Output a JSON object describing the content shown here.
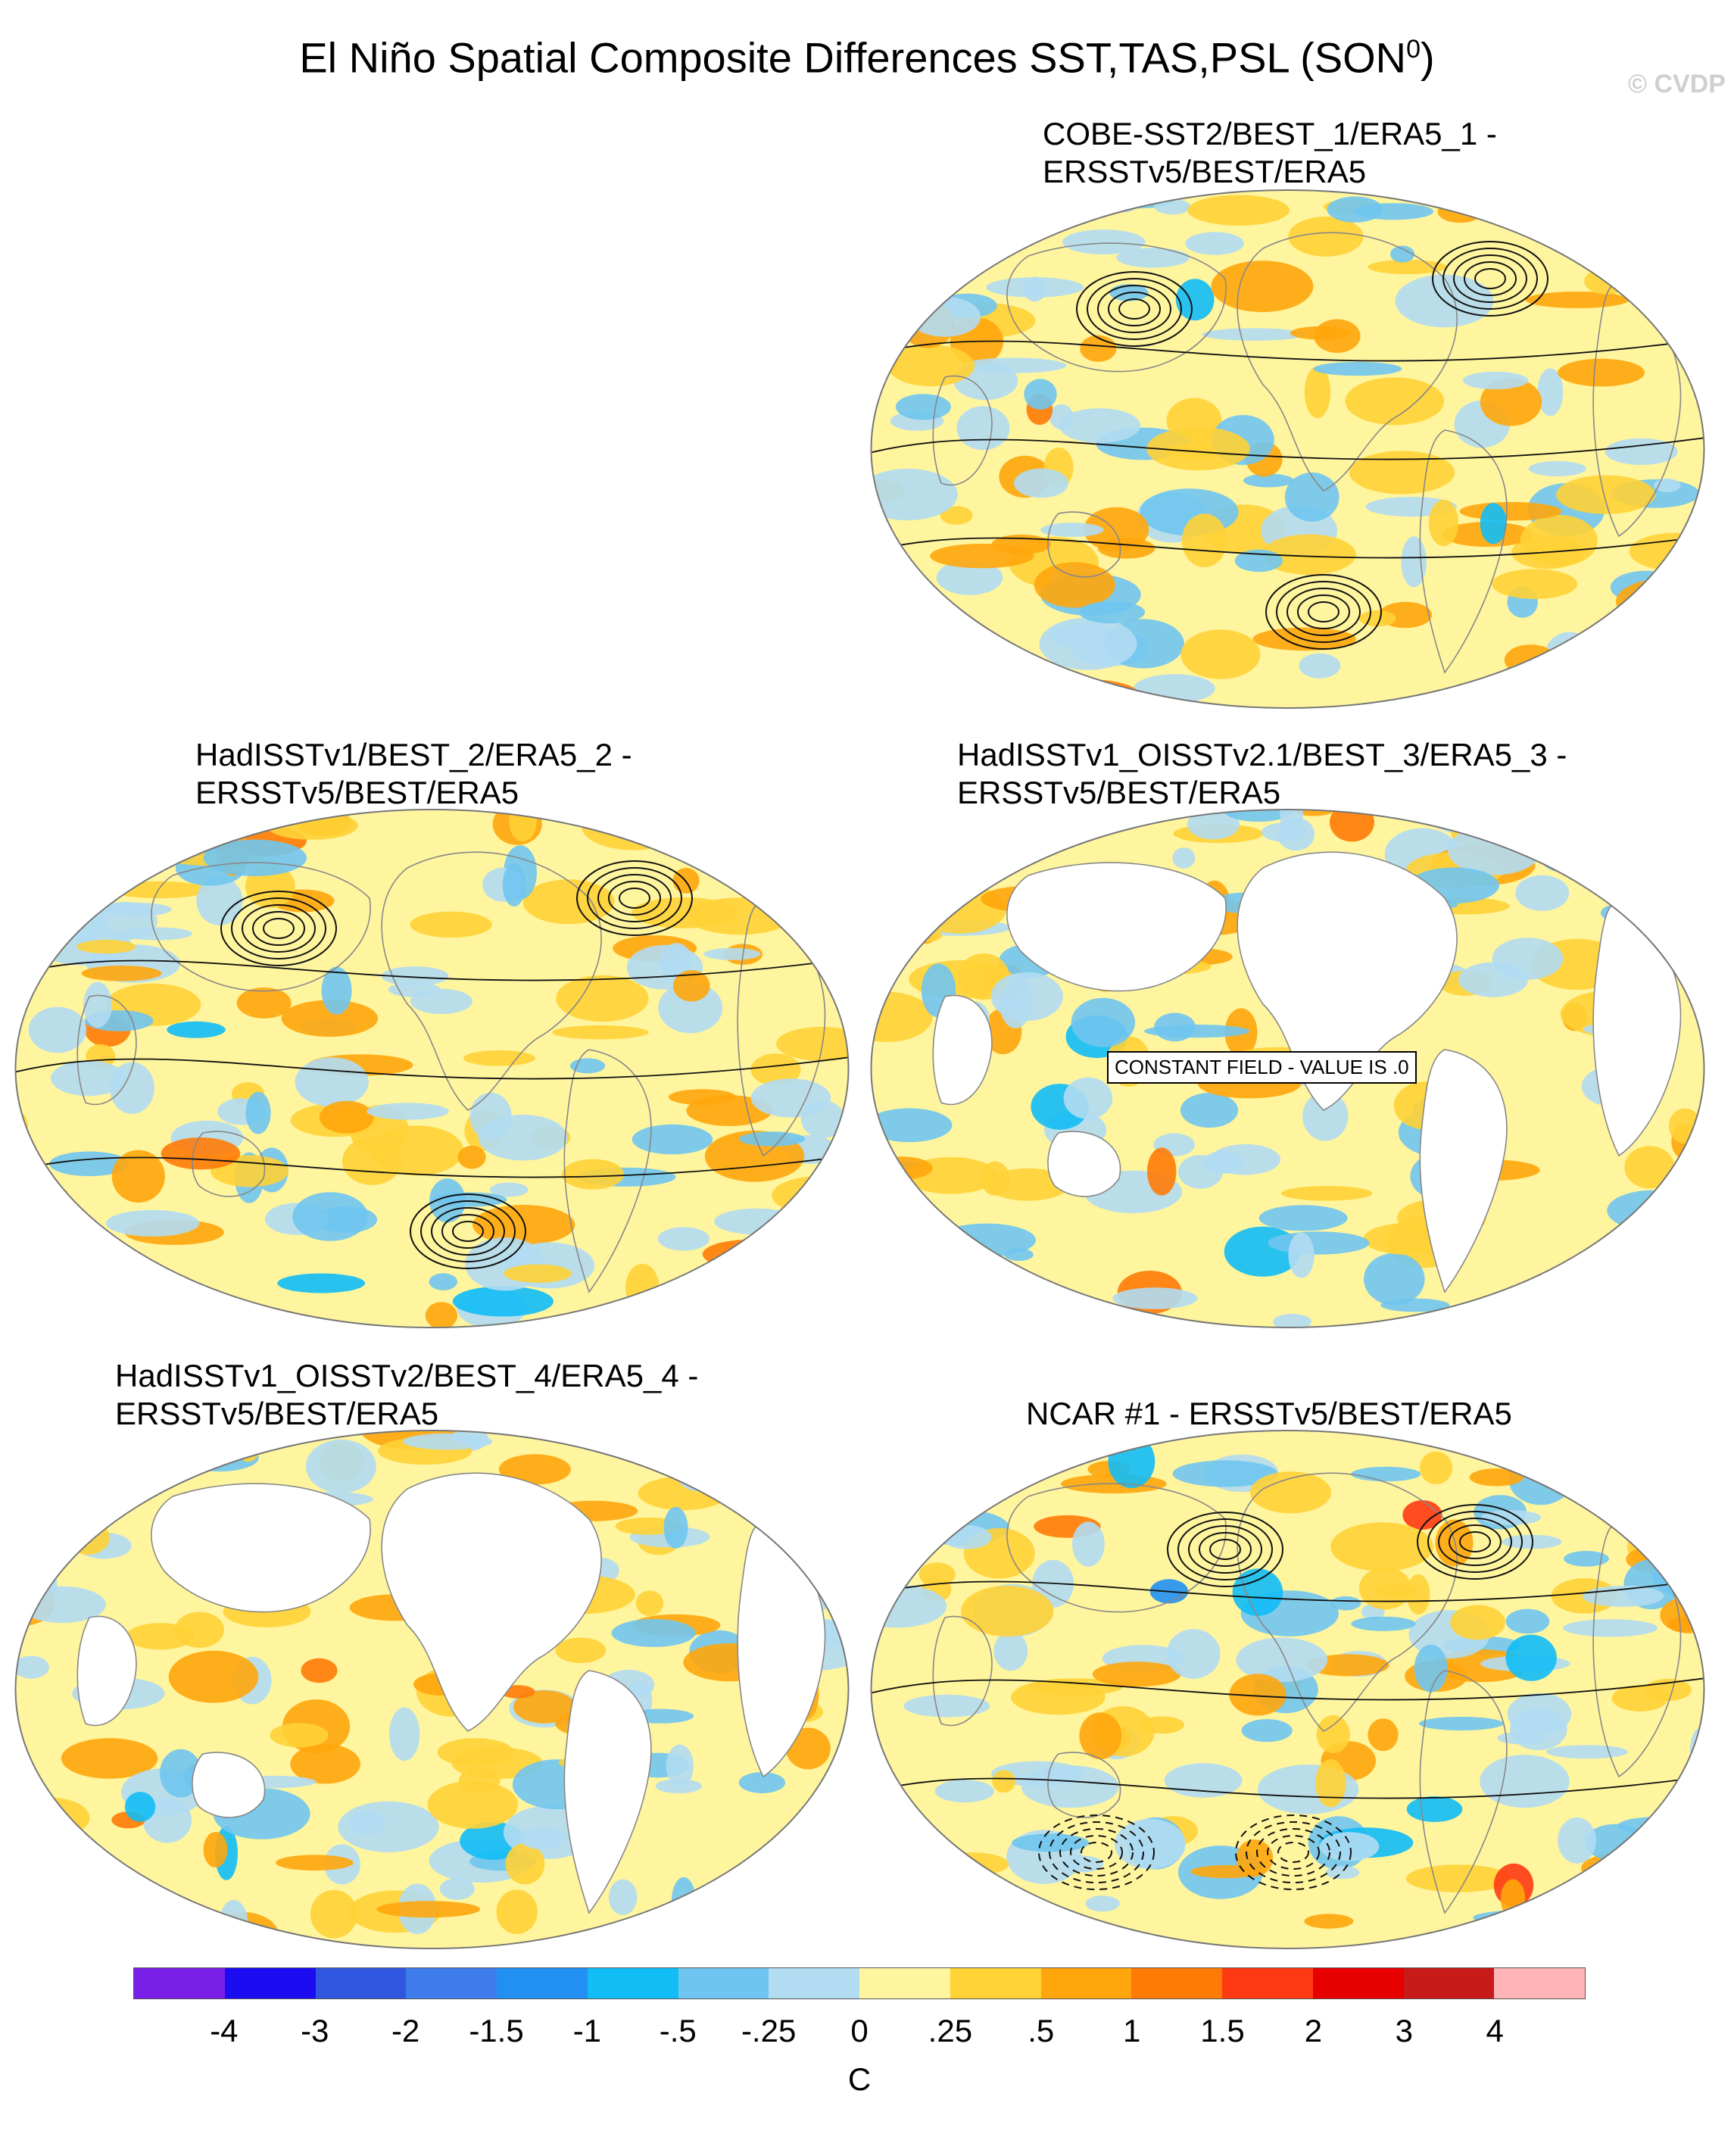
{
  "title": "El Niño Spatial Composite Differences SST,TAS,PSL (SON",
  "title_superscript": "0",
  "title_suffix": ")",
  "watermark": "© CVDP",
  "panels": [
    {
      "id": "p1",
      "line1": "COBE-SST2/BEST_1/ERA5_1 -",
      "line2": "ERSSTv5/BEST/ERA5",
      "land": "filled",
      "contours": "strong",
      "constant_note": ""
    },
    {
      "id": "p2",
      "line1": "HadISSTv1/BEST_2/ERA5_2 -",
      "line2": "ERSSTv5/BEST/ERA5",
      "land": "filled",
      "contours": "strong",
      "constant_note": ""
    },
    {
      "id": "p3",
      "line1": "HadISSTv1_OISSTv2.1/BEST_3/ERA5_3 -",
      "line2": "ERSSTv5/BEST/ERA5",
      "land": "blank",
      "contours": "none",
      "constant_note": "CONSTANT FIELD - VALUE IS .0"
    },
    {
      "id": "p4",
      "line1": "HadISSTv1_OISSTv2/BEST_4/ERA5_4 -",
      "line2": "ERSSTv5/BEST/ERA5",
      "land": "blank",
      "contours": "none",
      "constant_note": ""
    },
    {
      "id": "p5",
      "line1": "NCAR #1 - ERSSTv5/BEST/ERA5",
      "line2": "",
      "land": "filled",
      "contours": "model",
      "constant_note": ""
    }
  ],
  "colorbar": {
    "colors": [
      "#7a1fe8",
      "#1c0cf2",
      "#3156e0",
      "#3d7cea",
      "#2290f3",
      "#12bdf6",
      "#70c5f0",
      "#b1dcf2",
      "#fff59e",
      "#ffd236",
      "#ffa60c",
      "#ff7b07",
      "#ff3a12",
      "#e60000",
      "#c91a1a",
      "#ffb4b8"
    ],
    "labels": [
      "-4",
      "-3",
      "-2",
      "-1.5",
      "-1",
      "-.5",
      "-.25",
      "0",
      ".25",
      ".5",
      "1",
      "1.5",
      "2",
      "3",
      "4"
    ],
    "unit": "C"
  }
}
